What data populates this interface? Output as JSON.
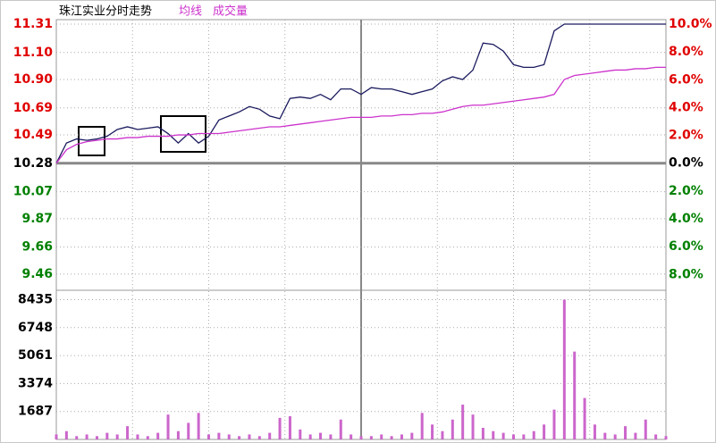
{
  "chart_data": [
    {
      "type": "line",
      "title": "珠江实业分时走势",
      "x": [
        0,
        4,
        8,
        12,
        16,
        20,
        24,
        28,
        32,
        36,
        40,
        44,
        48,
        52,
        56,
        60,
        64,
        68,
        72,
        76,
        80,
        84,
        88,
        92,
        96,
        100,
        104,
        108,
        112,
        116,
        120,
        124,
        128,
        132,
        136,
        140,
        144,
        148,
        152,
        156,
        160,
        164,
        168,
        172,
        176,
        180,
        184,
        188,
        192,
        196,
        200,
        204,
        208,
        212,
        216,
        220,
        224,
        228,
        232,
        236,
        240
      ],
      "xlim": [
        0,
        240
      ],
      "series": [
        {
          "color": "#1a1a5e",
          "values": [
            10.28,
            10.43,
            10.46,
            10.45,
            10.46,
            10.48,
            10.53,
            10.55,
            10.53,
            10.54,
            10.55,
            10.5,
            10.43,
            10.5,
            10.43,
            10.48,
            10.6,
            10.63,
            10.66,
            10.7,
            10.68,
            10.63,
            10.61,
            10.76,
            10.77,
            10.76,
            10.79,
            10.75,
            10.83,
            10.83,
            10.79,
            10.84,
            10.83,
            10.83,
            10.81,
            10.79,
            10.81,
            10.83,
            10.89,
            10.92,
            10.9,
            10.97,
            11.17,
            11.16,
            11.11,
            11.01,
            10.99,
            10.99,
            11.01,
            11.26,
            11.31,
            11.31,
            11.31,
            11.31,
            11.31,
            11.31,
            11.31,
            11.31,
            11.31,
            11.31,
            11.31
          ]
        },
        {
          "name": "均线",
          "color": "#cc33cc",
          "values": [
            10.28,
            10.38,
            10.42,
            10.44,
            10.45,
            10.46,
            10.46,
            10.47,
            10.47,
            10.48,
            10.48,
            10.48,
            10.49,
            10.49,
            10.5,
            10.5,
            10.5,
            10.51,
            10.52,
            10.53,
            10.54,
            10.55,
            10.55,
            10.56,
            10.57,
            10.58,
            10.59,
            10.6,
            10.61,
            10.62,
            10.62,
            10.62,
            10.63,
            10.63,
            10.64,
            10.64,
            10.65,
            10.65,
            10.66,
            10.68,
            10.7,
            10.71,
            10.71,
            10.72,
            10.73,
            10.74,
            10.75,
            10.76,
            10.77,
            10.79,
            10.9,
            10.93,
            10.94,
            10.95,
            10.96,
            10.97,
            10.97,
            10.98,
            10.98,
            10.99,
            10.99
          ]
        }
      ],
      "ylim": [
        9.34,
        11.31
      ],
      "yticks": [
        11.31,
        {
          "value": 11.1,
          "label": "11.10"
        },
        {
          "value": 10.9,
          "label": "10.90"
        },
        10.69,
        10.49,
        10.28,
        10.07,
        9.87,
        9.66,
        9.46
      ],
      "y2lim": [
        -9.14,
        10
      ],
      "y2ticks": [
        {
          "value": 10,
          "label": "10.0%"
        },
        {
          "value": 8,
          "label": "8.0%"
        },
        {
          "value": 6,
          "label": "6.0%"
        },
        {
          "value": 4,
          "label": "4.0%"
        },
        {
          "value": 2,
          "label": "2.0%"
        },
        {
          "value": 0,
          "label": "0.0%"
        },
        {
          "value": -2,
          "label": "2.0%"
        },
        {
          "value": -4,
          "label": "4.0%"
        },
        {
          "value": -6,
          "label": "6.0%"
        },
        {
          "value": -8,
          "label": "8.0%"
        }
      ],
      "grid": true
    },
    {
      "type": "bar",
      "name": "成交量",
      "color": "#cc66cc",
      "x": [
        0,
        4,
        8,
        12,
        16,
        20,
        24,
        28,
        32,
        36,
        40,
        44,
        48,
        52,
        56,
        60,
        64,
        68,
        72,
        76,
        80,
        84,
        88,
        92,
        96,
        100,
        104,
        108,
        112,
        116,
        120,
        124,
        128,
        132,
        136,
        140,
        144,
        148,
        152,
        156,
        160,
        164,
        168,
        172,
        176,
        180,
        184,
        188,
        192,
        196,
        200,
        204,
        208,
        212,
        216,
        220,
        224,
        228,
        232,
        236,
        240
      ],
      "xlim": [
        0,
        240
      ],
      "values": [
        300,
        500,
        200,
        300,
        200,
        400,
        300,
        800,
        300,
        200,
        400,
        1500,
        500,
        1000,
        1600,
        300,
        400,
        300,
        200,
        300,
        200,
        400,
        1300,
        1400,
        600,
        300,
        400,
        300,
        1200,
        300,
        200,
        200,
        300,
        200,
        300,
        400,
        1600,
        900,
        500,
        1200,
        2100,
        1500,
        700,
        500,
        400,
        300,
        300,
        500,
        900,
        1800,
        8435,
        5300,
        2500,
        900,
        400,
        300,
        800,
        400,
        1200,
        300,
        200
      ],
      "ylim": [
        0,
        9000
      ],
      "yticks": [
        8435,
        6748,
        5061,
        3374,
        1687
      ],
      "grid": true
    }
  ]
}
